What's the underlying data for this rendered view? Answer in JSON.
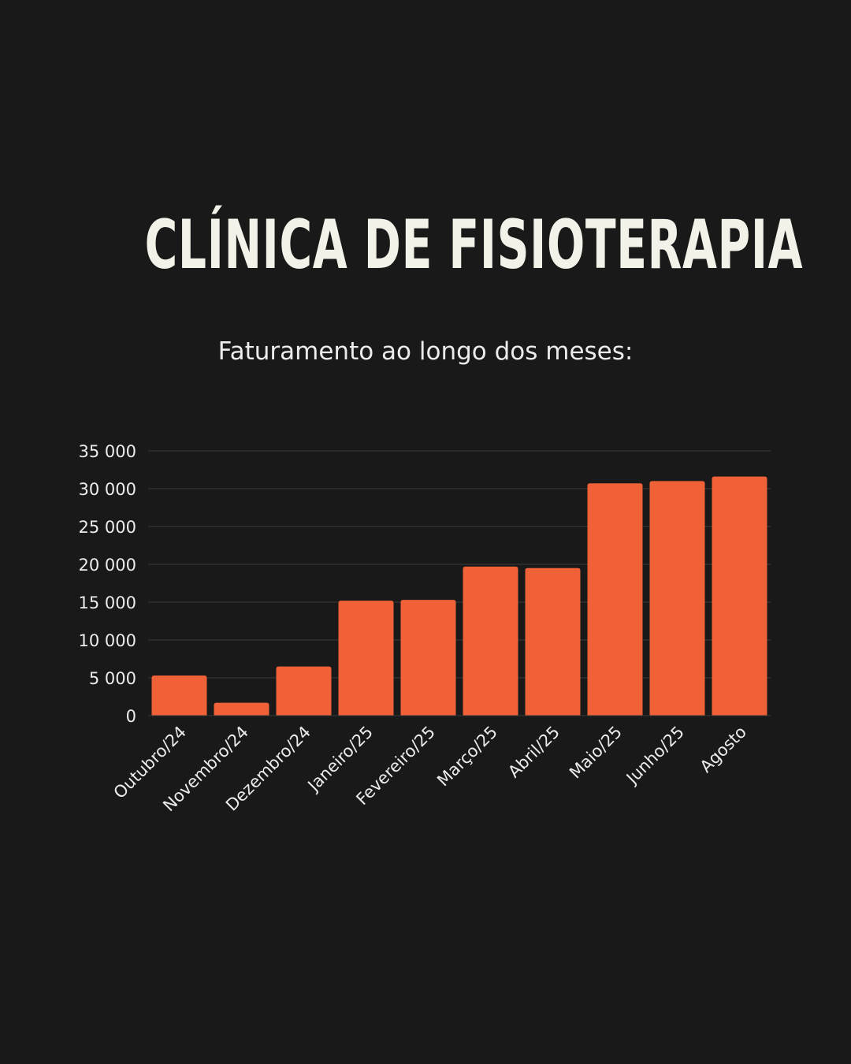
{
  "header": {
    "title": "CLÍNICA DE FISIOTERAPIA",
    "subtitle": "Faturamento ao longo dos meses:"
  },
  "colors": {
    "background": "#191919",
    "bar": "#f06137",
    "grid": "#3a3a3a",
    "text": "#ececec"
  },
  "chart_data": {
    "type": "bar",
    "categories": [
      "Outubro/24",
      "Novembro/24",
      "Dezembro/24",
      "Janeiro/25",
      "Fevereiro/25",
      "Março/25",
      "Abril/25",
      "Maio/25",
      "Junho/25",
      "Agosto"
    ],
    "values": [
      5300,
      1700,
      6500,
      15200,
      15300,
      19700,
      19500,
      30700,
      31000,
      31600
    ],
    "title": "",
    "xlabel": "",
    "ylabel": "",
    "ylim": [
      0,
      35000
    ],
    "yticks": [
      0,
      5000,
      10000,
      15000,
      20000,
      25000,
      30000,
      35000
    ],
    "ytick_labels": [
      "0",
      "5 000",
      "10 000",
      "15 000",
      "20 000",
      "25 000",
      "30 000",
      "35 000"
    ],
    "grid": true,
    "legend": "none"
  }
}
